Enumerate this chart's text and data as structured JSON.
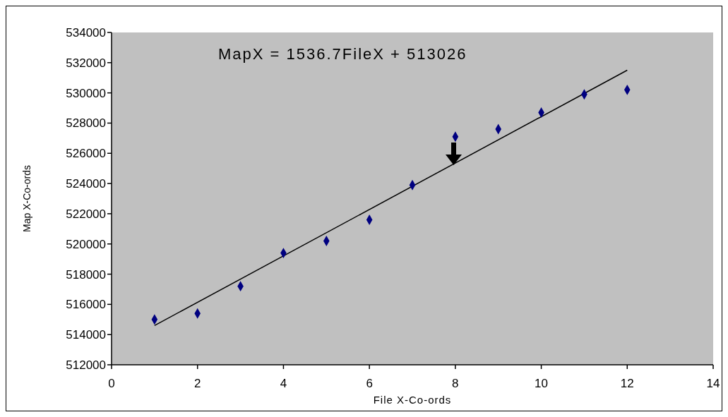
{
  "chart_data": {
    "type": "scatter",
    "xlabel": "File X-Co-ords",
    "ylabel": "Map X-Co-ords",
    "annotations": [
      "MapX = 1536.7FileX + 513026"
    ],
    "xlim": [
      0,
      14
    ],
    "xticks": [
      0,
      2,
      4,
      6,
      8,
      10,
      12,
      14
    ],
    "ylim": [
      512000,
      534000
    ],
    "yticks": [
      512000,
      514000,
      516000,
      518000,
      520000,
      522000,
      524000,
      526000,
      528000,
      530000,
      532000,
      534000
    ],
    "series": [
      {
        "type": "scatter",
        "marker": "diamond",
        "color": "#000080",
        "x": [
          1,
          2,
          3,
          4,
          5,
          6,
          7,
          8,
          9,
          10,
          11,
          12
        ],
        "values": [
          515000,
          515400,
          517200,
          519400,
          520200,
          521600,
          523900,
          527100,
          527600,
          528700,
          529900,
          530200
        ]
      },
      {
        "type": "line",
        "marker": "none",
        "color": "#000000",
        "x": [
          1,
          12
        ],
        "values": [
          514600,
          531500
        ]
      }
    ]
  }
}
